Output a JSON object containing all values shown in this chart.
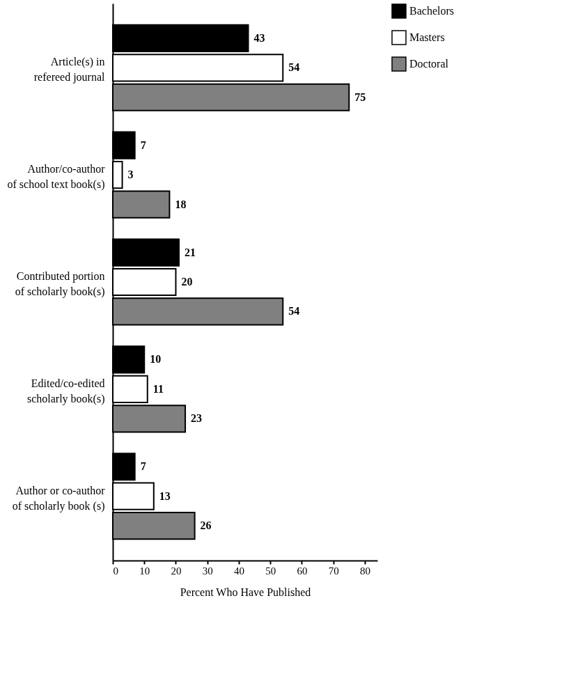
{
  "chart_data": {
    "type": "bar",
    "orientation": "horizontal",
    "xlabel": "Percent Who Have Published",
    "categories": [
      "Article(s) in\nrefereed journal",
      "Author/co-author\nof school text book(s)",
      "Contributed portion\nof scholarly book(s)",
      "Edited/co-edited\nscholarly book(s)",
      "Author or co-author\nof scholarly book (s)"
    ],
    "series": [
      {
        "name": "Bachelors",
        "color": "#000000",
        "values": [
          43,
          7,
          21,
          10,
          7
        ]
      },
      {
        "name": "Masters",
        "color": "#ffffff",
        "values": [
          54,
          3,
          20,
          11,
          13
        ]
      },
      {
        "name": "Doctoral",
        "color": "#808080",
        "values": [
          75,
          18,
          54,
          23,
          26
        ]
      }
    ],
    "xlim": [
      0,
      84
    ],
    "xticks": [
      0,
      10,
      20,
      30,
      40,
      50,
      60,
      70,
      80
    ],
    "grid": false,
    "legend": "right",
    "data_labels": true
  }
}
